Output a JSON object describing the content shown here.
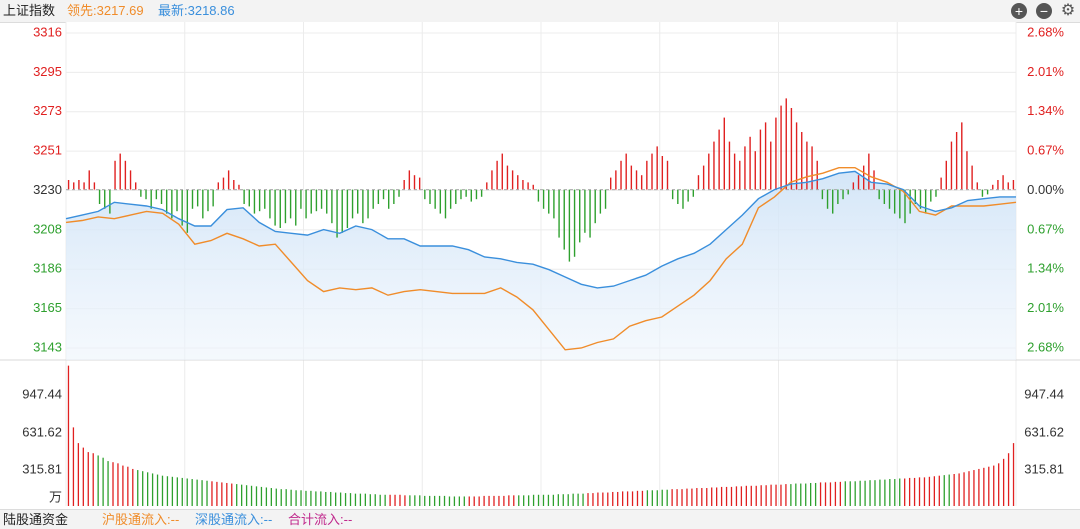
{
  "header": {
    "index_name": "上证指数",
    "leading_label": "领先:3217.69",
    "latest_label": "最新:3218.86",
    "colors": {
      "leading": "#f08c2a",
      "latest": "#3a8fdc",
      "title": "#222222"
    },
    "icons": [
      "plus-circle-icon",
      "minus-circle-icon",
      "gear-icon"
    ]
  },
  "footer": {
    "title": "陆股通资金",
    "sh_flow": "沪股通流入:--",
    "sz_flow": "深股通流入:--",
    "total_flow": "合计流入:--",
    "colors": {
      "sh": "#f08c2a",
      "sz": "#3a8fdc",
      "total": "#c0288c"
    }
  },
  "chart_data": {
    "type": "line",
    "base_price": 3230,
    "price_ticks": [
      "3316",
      "3295",
      "3273",
      "3251",
      "3230",
      "3208",
      "3186",
      "3165",
      "3143"
    ],
    "pct_ticks": [
      "2.68%",
      "2.01%",
      "1.34%",
      "0.67%",
      "0.00%",
      "0.67%",
      "1.34%",
      "2.01%",
      "2.68%"
    ],
    "volume_ticks": [
      "947.44",
      "631.62",
      "315.81"
    ],
    "volume_unit": "万",
    "ylim": [
      3143,
      3316
    ],
    "volume_ylim": [
      0,
      1300
    ],
    "colors": {
      "up": "#e02020",
      "down": "#2ea02e",
      "leading": "#f08c2a",
      "latest": "#3a8fdc"
    },
    "series": [
      {
        "name": "最新",
        "values": [
          3214,
          3216,
          3218,
          3223,
          3222,
          3221,
          3219,
          3214,
          3210,
          3210,
          3219,
          3220,
          3212,
          3207,
          3206,
          3205,
          3208,
          3206,
          3210,
          3208,
          3203,
          3203,
          3199,
          3199,
          3199,
          3197,
          3193,
          3192,
          3190,
          3189,
          3186,
          3182,
          3178,
          3176,
          3177,
          3180,
          3183,
          3188,
          3192,
          3195,
          3200,
          3208,
          3216,
          3225,
          3230,
          3233,
          3234,
          3236,
          3239,
          3240,
          3234,
          3233,
          3230,
          3221,
          3218,
          3220,
          3224,
          3225,
          3226,
          3226
        ]
      },
      {
        "name": "领先",
        "values": [
          3212,
          3213,
          3215,
          3214,
          3216,
          3218,
          3217,
          3211,
          3200,
          3202,
          3206,
          3203,
          3199,
          3200,
          3190,
          3180,
          3174,
          3176,
          3175,
          3176,
          3172,
          3174,
          3175,
          3174,
          3173,
          3173,
          3173,
          3176,
          3171,
          3164,
          3153,
          3142,
          3143,
          3146,
          3148,
          3155,
          3158,
          3160,
          3166,
          3172,
          3180,
          3192,
          3200,
          3220,
          3226,
          3234,
          3237,
          3239,
          3242,
          3242,
          3237,
          3234,
          3229,
          3218,
          3216,
          3221,
          3221,
          3221,
          3222,
          3223
        ]
      }
    ],
    "bars": [
      4,
      3,
      4,
      3,
      8,
      3,
      -6,
      -8,
      -10,
      12,
      15,
      12,
      8,
      3,
      -3,
      -4,
      -8,
      -4,
      -6,
      -10,
      -12,
      -9,
      -15,
      -18,
      -8,
      -7,
      -12,
      -9,
      -7,
      3,
      5,
      8,
      4,
      2,
      -6,
      -7,
      -10,
      -9,
      -8,
      -12,
      -15,
      -16,
      -14,
      -12,
      -15,
      -8,
      -12,
      -10,
      -9,
      -8,
      -10,
      -14,
      -20,
      -18,
      -16,
      -12,
      -10,
      -14,
      -12,
      -8,
      -6,
      -4,
      -8,
      -6,
      -3,
      4,
      8,
      6,
      5,
      -4,
      -6,
      -8,
      -10,
      -12,
      -8,
      -6,
      -4,
      -3,
      -5,
      -4,
      -3,
      3,
      8,
      12,
      15,
      10,
      8,
      6,
      4,
      3,
      2,
      -5,
      -8,
      -10,
      -12,
      -20,
      -25,
      -30,
      -28,
      -22,
      -18,
      -20,
      -14,
      -10,
      -8,
      5,
      8,
      12,
      15,
      10,
      8,
      6,
      12,
      15,
      18,
      14,
      12,
      -4,
      -6,
      -8,
      -5,
      -3,
      6,
      10,
      15,
      20,
      25,
      30,
      20,
      15,
      12,
      18,
      22,
      16,
      25,
      28,
      20,
      30,
      35,
      38,
      34,
      28,
      24,
      20,
      18,
      12,
      -4,
      -8,
      -10,
      -6,
      -4,
      -2,
      3,
      6,
      10,
      15,
      8,
      -4,
      -6,
      -8,
      -10,
      -12,
      -14,
      -10,
      -6,
      -8,
      -10,
      -5,
      -3,
      5,
      12,
      20,
      24,
      28,
      16,
      10,
      3,
      -3,
      -2,
      2,
      4,
      6,
      3,
      4
    ],
    "volumes": [
      1250,
      700,
      560,
      520,
      480,
      470,
      450,
      430,
      400,
      390,
      380,
      360,
      350,
      330,
      320,
      310,
      300,
      290,
      280,
      270,
      265,
      260,
      255,
      250,
      245,
      240,
      235,
      230,
      225,
      220,
      215,
      210,
      205,
      200,
      195,
      190,
      185,
      180,
      175,
      170,
      165,
      160,
      155,
      150,
      150,
      145,
      140,
      140,
      135,
      135,
      130,
      130,
      125,
      125,
      120,
      120,
      115,
      115,
      110,
      110,
      110,
      105,
      105,
      100,
      100,
      100,
      100,
      100,
      95,
      95,
      95,
      95,
      90,
      90,
      90,
      90,
      90,
      85,
      85,
      85,
      85,
      85,
      85,
      85,
      90,
      90,
      90,
      90,
      90,
      95,
      95,
      95,
      95,
      95,
      100,
      100,
      100,
      100,
      100,
      105,
      105,
      105,
      110,
      110,
      110,
      115,
      115,
      120,
      120,
      120,
      125,
      125,
      130,
      130,
      130,
      135,
      135,
      140,
      140,
      140,
      145,
      145,
      150,
      150,
      150,
      155,
      155,
      160,
      160,
      160,
      165,
      165,
      170,
      170,
      170,
      175,
      175,
      180,
      180,
      180,
      185,
      185,
      190,
      190,
      190,
      195,
      195,
      200,
      200,
      200,
      205,
      205,
      210,
      210,
      210,
      215,
      215,
      220,
      220,
      220,
      225,
      225,
      230,
      230,
      235,
      235,
      240,
      240,
      245,
      245,
      250,
      250,
      255,
      255,
      260,
      265,
      270,
      275,
      280,
      285,
      290,
      300,
      310,
      320,
      330,
      340,
      350,
      360,
      380,
      420,
      470,
      560
    ]
  }
}
